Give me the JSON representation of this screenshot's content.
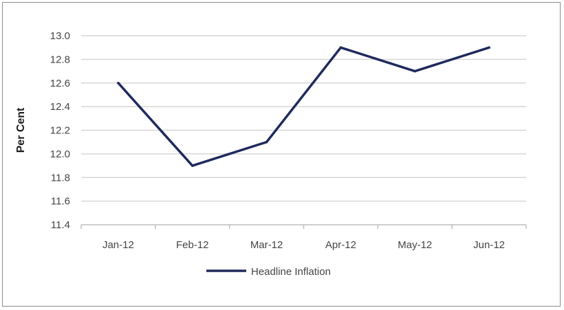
{
  "chart_data": {
    "type": "line",
    "categories": [
      "Jan-12",
      "Feb-12",
      "Mar-12",
      "Apr-12",
      "May-12",
      "Jun-12"
    ],
    "series": [
      {
        "name": "Headline Inflation",
        "values": [
          12.6,
          11.9,
          12.1,
          12.9,
          12.7,
          12.9
        ],
        "color": "#1f2a5c"
      }
    ],
    "title": "",
    "xlabel": "",
    "ylabel": "Per Cent",
    "ylim": [
      11.4,
      13.0
    ],
    "yticks": [
      "13.0",
      "12.8",
      "12.6",
      "12.4",
      "12.2",
      "12.0",
      "11.8",
      "11.6",
      "11.4"
    ],
    "grid": true,
    "legend": "bottom-center"
  }
}
